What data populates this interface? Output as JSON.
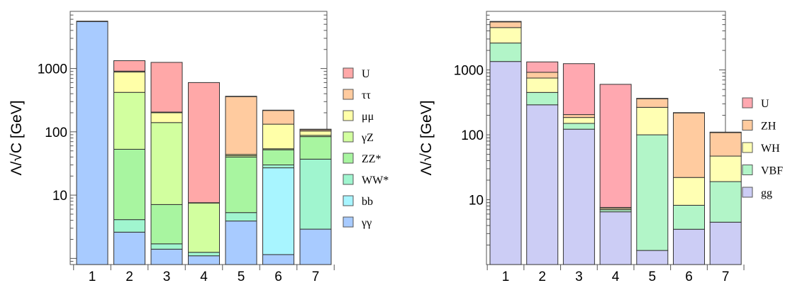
{
  "chart_data": [
    {
      "type": "bar",
      "stacked": true,
      "y_scale": "log",
      "ylabel": "Λ/√C [GeV]",
      "ylim": [
        0.8,
        8000
      ],
      "y_ticks": [
        {
          "value": 10,
          "label": "10"
        },
        {
          "value": 100,
          "label": "100"
        },
        {
          "value": 1000,
          "label": "1000"
        }
      ],
      "categories": [
        "1",
        "2",
        "3",
        "4",
        "5",
        "6",
        "7"
      ],
      "legend_position": "right",
      "colors": {
        "U": "#ffa8a8",
        "ττ": "#ffcb9f",
        "μμ": "#ffffa8",
        "γZ": "#d2ff9f",
        "ZZ*": "#a8f5a0",
        "WW*": "#a0f5cf",
        "bb": "#a8f5ff",
        "γγ": "#a8cbff"
      },
      "legend": [
        {
          "key": "U",
          "label": "U"
        },
        {
          "key": "ττ",
          "label": "ττ"
        },
        {
          "key": "μμ",
          "label": "μμ"
        },
        {
          "key": "γZ",
          "label": "γZ"
        },
        {
          "key": "ZZ*",
          "label": "ZZ*"
        },
        {
          "key": "WW*",
          "label": "WW*"
        },
        {
          "key": "bb",
          "label": "bb"
        },
        {
          "key": "γγ",
          "label": "γγ"
        }
      ],
      "bars": [
        {
          "category": "1",
          "segments": [
            {
              "name": "γγ",
              "to": 5500
            },
            {
              "name": "U",
              "to": 5600
            }
          ]
        },
        {
          "category": "2",
          "segments": [
            {
              "name": "γγ",
              "to": 2.6
            },
            {
              "name": "WW*",
              "to": 4.1
            },
            {
              "name": "ZZ*",
              "to": 53
            },
            {
              "name": "γZ",
              "to": 420
            },
            {
              "name": "μμ",
              "to": 880
            },
            {
              "name": "ττ",
              "to": 910
            },
            {
              "name": "U",
              "to": 1330
            }
          ]
        },
        {
          "category": "3",
          "segments": [
            {
              "name": "γγ",
              "to": 1.4
            },
            {
              "name": "WW*",
              "to": 1.7
            },
            {
              "name": "ZZ*",
              "to": 7.1
            },
            {
              "name": "γZ",
              "to": 140
            },
            {
              "name": "μμ",
              "to": 200
            },
            {
              "name": "ττ",
              "to": 205
            },
            {
              "name": "U",
              "to": 1250
            }
          ]
        },
        {
          "category": "4",
          "segments": [
            {
              "name": "γγ",
              "to": 1.1
            },
            {
              "name": "WW*",
              "to": 1.25
            },
            {
              "name": "γZ",
              "to": 7.5
            },
            {
              "name": "ττ",
              "to": 7.6
            },
            {
              "name": "U",
              "to": 600
            }
          ]
        },
        {
          "category": "5",
          "segments": [
            {
              "name": "γγ",
              "to": 3.9
            },
            {
              "name": "WW*",
              "to": 5.3
            },
            {
              "name": "ZZ*",
              "to": 40
            },
            {
              "name": "γZ",
              "to": 42
            },
            {
              "name": "μμ",
              "to": 44
            },
            {
              "name": "ττ",
              "to": 360
            },
            {
              "name": "U",
              "to": 365
            }
          ]
        },
        {
          "category": "6",
          "segments": [
            {
              "name": "γγ",
              "to": 1.15
            },
            {
              "name": "bb",
              "to": 27
            },
            {
              "name": "WW*",
              "to": 30
            },
            {
              "name": "ZZ*",
              "to": 52
            },
            {
              "name": "γZ",
              "to": 54
            },
            {
              "name": "μμ",
              "to": 132
            },
            {
              "name": "ττ",
              "to": 218
            },
            {
              "name": "U",
              "to": 220
            }
          ]
        },
        {
          "category": "7",
          "segments": [
            {
              "name": "γγ",
              "to": 2.9
            },
            {
              "name": "WW*",
              "to": 37
            },
            {
              "name": "ZZ*",
              "to": 84
            },
            {
              "name": "γZ",
              "to": 88
            },
            {
              "name": "μμ",
              "to": 103
            },
            {
              "name": "ττ",
              "to": 108
            },
            {
              "name": "U",
              "to": 110
            }
          ]
        }
      ]
    },
    {
      "type": "bar",
      "stacked": true,
      "y_scale": "log",
      "ylabel": "Λ/√C [GeV]",
      "ylim": [
        1,
        8000
      ],
      "y_ticks": [
        {
          "value": 10,
          "label": "10"
        },
        {
          "value": 100,
          "label": "100"
        },
        {
          "value": 1000,
          "label": "1000"
        }
      ],
      "categories": [
        "1",
        "2",
        "3",
        "4",
        "5",
        "6",
        "7"
      ],
      "legend_position": "right",
      "colors": {
        "U": "#ffa8b0",
        "ZH": "#ffcb9f",
        "WH": "#ffffb3",
        "VBF": "#b2f5c8",
        "gg": "#cccdf5"
      },
      "legend": [
        {
          "key": "U",
          "label": "U"
        },
        {
          "key": "ZH",
          "label": "ZH"
        },
        {
          "key": "WH",
          "label": "WH"
        },
        {
          "key": "VBF",
          "label": "VBF"
        },
        {
          "key": "gg",
          "label": "gg"
        }
      ],
      "bars": [
        {
          "category": "1",
          "segments": [
            {
              "name": "gg",
              "to": 1350
            },
            {
              "name": "VBF",
              "to": 2600
            },
            {
              "name": "WH",
              "to": 4500
            },
            {
              "name": "ZH",
              "to": 5500
            },
            {
              "name": "U",
              "to": 5600
            }
          ]
        },
        {
          "category": "2",
          "segments": [
            {
              "name": "gg",
              "to": 290
            },
            {
              "name": "VBF",
              "to": 450
            },
            {
              "name": "WH",
              "to": 750
            },
            {
              "name": "ZH",
              "to": 920
            },
            {
              "name": "U",
              "to": 1330
            }
          ]
        },
        {
          "category": "3",
          "segments": [
            {
              "name": "gg",
              "to": 122
            },
            {
              "name": "VBF",
              "to": 150
            },
            {
              "name": "WH",
              "to": 185
            },
            {
              "name": "ZH",
              "to": 205
            },
            {
              "name": "U",
              "to": 1250
            }
          ]
        },
        {
          "category": "4",
          "segments": [
            {
              "name": "gg",
              "to": 6.5
            },
            {
              "name": "VBF",
              "to": 7.0
            },
            {
              "name": "WH",
              "to": 7.3
            },
            {
              "name": "ZH",
              "to": 7.6
            },
            {
              "name": "U",
              "to": 600
            }
          ]
        },
        {
          "category": "5",
          "segments": [
            {
              "name": "gg",
              "to": 1.65
            },
            {
              "name": "VBF",
              "to": 100
            },
            {
              "name": "WH",
              "to": 265
            },
            {
              "name": "ZH",
              "to": 360
            },
            {
              "name": "U",
              "to": 365
            }
          ]
        },
        {
          "category": "6",
          "segments": [
            {
              "name": "gg",
              "to": 3.5
            },
            {
              "name": "VBF",
              "to": 8.2
            },
            {
              "name": "WH",
              "to": 22
            },
            {
              "name": "ZH",
              "to": 218
            },
            {
              "name": "U",
              "to": 220
            }
          ]
        },
        {
          "category": "7",
          "segments": [
            {
              "name": "gg",
              "to": 4.5
            },
            {
              "name": "VBF",
              "to": 19
            },
            {
              "name": "WH",
              "to": 47
            },
            {
              "name": "ZH",
              "to": 108
            },
            {
              "name": "U",
              "to": 110
            }
          ]
        }
      ]
    }
  ]
}
